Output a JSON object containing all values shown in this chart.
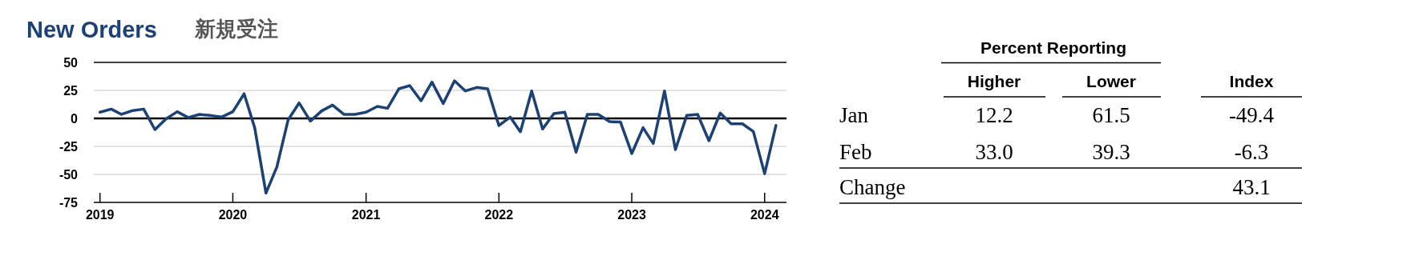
{
  "chart_data": [
    {
      "type": "line",
      "title": "New Orders",
      "subtitle": "新規受注",
      "x": [
        "2019-01",
        "2019-02",
        "2019-03",
        "2019-04",
        "2019-05",
        "2019-06",
        "2019-07",
        "2019-08",
        "2019-09",
        "2019-10",
        "2019-11",
        "2019-12",
        "2020-01",
        "2020-02",
        "2020-03",
        "2020-04",
        "2020-05",
        "2020-06",
        "2020-07",
        "2020-08",
        "2020-09",
        "2020-10",
        "2020-11",
        "2020-12",
        "2021-01",
        "2021-02",
        "2021-03",
        "2021-04",
        "2021-05",
        "2021-06",
        "2021-07",
        "2021-08",
        "2021-09",
        "2021-10",
        "2021-11",
        "2021-12",
        "2022-01",
        "2022-02",
        "2022-03",
        "2022-04",
        "2022-05",
        "2022-06",
        "2022-07",
        "2022-08",
        "2022-09",
        "2022-10",
        "2022-11",
        "2022-12",
        "2023-01",
        "2023-02",
        "2023-03",
        "2023-04",
        "2023-05",
        "2023-06",
        "2023-07",
        "2023-08",
        "2023-09",
        "2023-10",
        "2023-11",
        "2023-12",
        "2024-01",
        "2024-02"
      ],
      "series": [
        {
          "color": "#1c4174",
          "values": [
            5.5,
            8.3,
            3.6,
            7,
            8.3,
            -10,
            -0.5,
            6,
            0.7,
            3.6,
            2.6,
            1.2,
            6,
            22,
            -8.3,
            -66.7,
            -43.3,
            -1.2,
            13.8,
            -2.4,
            6.7,
            11.9,
            3.6,
            3.6,
            5.5,
            10.7,
            9,
            26.4,
            29.3,
            15.7,
            32.4,
            13.3,
            33.6,
            24.5,
            27.6,
            26.4,
            -6.4,
            1.2,
            -11.9,
            24.5,
            -9.5,
            4.3,
            5.5,
            -30.2,
            3.6,
            3.6,
            -2.9,
            -3.3,
            -31.4,
            -8.3,
            -22.4,
            24.5,
            -27.9,
            2.6,
            3.6,
            -20,
            4.8,
            -4.8,
            -4.8,
            -11.7,
            -49.4,
            -6.3
          ]
        }
      ],
      "xlim": [
        "2018-12-15",
        "2024-03-01"
      ],
      "xticks": [
        {
          "value": "2019-01",
          "label": "2019"
        },
        {
          "value": "2020-01",
          "label": "2020"
        },
        {
          "value": "2021-01",
          "label": "2021"
        },
        {
          "value": "2022-01",
          "label": "2022"
        },
        {
          "value": "2023-01",
          "label": "2023"
        },
        {
          "value": "2024-01",
          "label": "2024"
        }
      ],
      "ylim": [
        -75,
        50
      ],
      "yticks": [
        50,
        25,
        0,
        -25,
        -50,
        -75
      ],
      "grid": "y",
      "marker": "none",
      "line_style": "solid",
      "ref_lines": [
        {
          "axis": "y",
          "value": 0,
          "color": "#000000"
        }
      ]
    },
    {
      "type": "other",
      "title": "Percent Reporting",
      "categories": [
        "Higher",
        "Lower",
        "Index"
      ],
      "y_categories": [
        "Jan",
        "Feb",
        "Change"
      ],
      "cell_labels": [
        [
          "12.2",
          "61.5",
          "-49.4"
        ],
        [
          "33.0",
          "39.3",
          "-6.3"
        ],
        [
          null,
          null,
          "43.1"
        ]
      ]
    }
  ]
}
